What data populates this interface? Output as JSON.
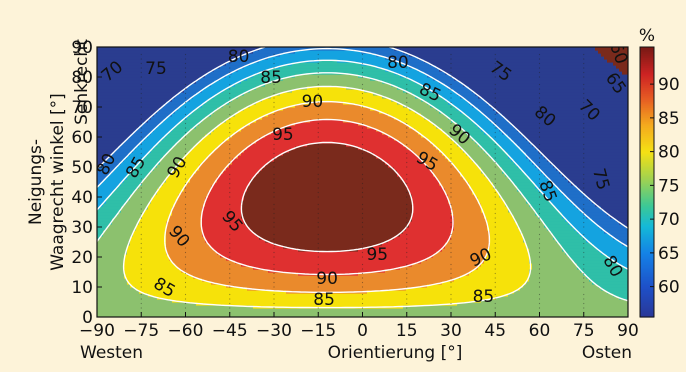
{
  "chart_data": {
    "type": "heatmap",
    "x": {
      "label": "Orientierung [°]",
      "range": [
        -90,
        90
      ],
      "ticks": [
        "−90",
        "−75",
        "−60",
        "−45",
        "−30",
        "−15",
        "0",
        "15",
        "30",
        "45",
        "60",
        "75",
        "90"
      ],
      "tick_values": [
        -90,
        -75,
        -60,
        -45,
        -30,
        -15,
        0,
        15,
        30,
        45,
        60,
        75,
        90
      ],
      "left_end_label": "Westen",
      "right_end_label": "Osten"
    },
    "y": {
      "label_line1": "Neigungs-",
      "label_line2": "Waagrecht winkel [°]",
      "top_label": "Senkrecht",
      "range": [
        0,
        90
      ],
      "ticks": [
        "0",
        "10",
        "20",
        "30",
        "40",
        "50",
        "60",
        "70",
        "80",
        "90"
      ],
      "tick_values": [
        0,
        10,
        20,
        30,
        40,
        50,
        60,
        70,
        80,
        90
      ]
    },
    "colorbar": {
      "unit": "%",
      "range": [
        55.5,
        95.5
      ],
      "ticks": [
        "60",
        "65",
        "70",
        "75",
        "80",
        "85",
        "90"
      ],
      "tick_values": [
        60,
        65,
        70,
        75,
        80,
        85,
        90
      ]
    },
    "value_model": {
      "peak_percent": 100,
      "peak_orientation": -12,
      "peak_tilt": 40
    },
    "contour_levels": [
      60,
      65,
      70,
      75,
      80,
      85,
      90,
      95
    ],
    "fill_bands": [
      {
        "min": 0,
        "max": 60,
        "color": "#2a3d8f"
      },
      {
        "min": 60,
        "max": 65,
        "color": "#1f6fc8"
      },
      {
        "min": 65,
        "max": 70,
        "color": "#14a3e0"
      },
      {
        "min": 70,
        "max": 75,
        "color": "#2fbfa8"
      },
      {
        "min": 75,
        "max": 80,
        "color": "#8cc16e"
      },
      {
        "min": 80,
        "max": 85,
        "color": "#f6e20a"
      },
      {
        "min": 85,
        "max": 90,
        "color": "#ea8a2c"
      },
      {
        "min": 90,
        "max": 95,
        "color": "#df3030"
      },
      {
        "min": 95,
        "max": 200,
        "color": "#7a2a1c"
      }
    ],
    "contour_labels": [
      {
        "text": "70",
        "x": -85,
        "y": 82,
        "rotate": -40
      },
      {
        "text": "75",
        "x": -70,
        "y": 83,
        "rotate": 0
      },
      {
        "text": "80",
        "x": -42,
        "y": 87,
        "rotate": 0
      },
      {
        "text": "80",
        "x": 12,
        "y": 85,
        "rotate": 0
      },
      {
        "text": "85",
        "x": -31,
        "y": 80,
        "rotate": 0
      },
      {
        "text": "85",
        "x": 23,
        "y": 75,
        "rotate": 25
      },
      {
        "text": "75",
        "x": 47,
        "y": 82,
        "rotate": 35
      },
      {
        "text": "80",
        "x": 62,
        "y": 67,
        "rotate": 40
      },
      {
        "text": "70",
        "x": 77,
        "y": 69,
        "rotate": 45
      },
      {
        "text": "65",
        "x": 86,
        "y": 78,
        "rotate": 55
      },
      {
        "text": "60",
        "x": 87,
        "y": 88,
        "rotate": 70
      },
      {
        "text": "75",
        "x": 81,
        "y": 46,
        "rotate": 75
      },
      {
        "text": "90",
        "x": -17,
        "y": 72,
        "rotate": 0
      },
      {
        "text": "95",
        "x": -27,
        "y": 61,
        "rotate": 0
      },
      {
        "text": "90",
        "x": 33,
        "y": 61,
        "rotate": 40
      },
      {
        "text": "95",
        "x": 22,
        "y": 52,
        "rotate": 30
      },
      {
        "text": "80",
        "x": -87,
        "y": 51,
        "rotate": -65
      },
      {
        "text": "85",
        "x": -77,
        "y": 50,
        "rotate": -60
      },
      {
        "text": "90",
        "x": -63,
        "y": 50,
        "rotate": -60
      },
      {
        "text": "85",
        "x": 63,
        "y": 42,
        "rotate": 70
      },
      {
        "text": "95",
        "x": -44,
        "y": 32,
        "rotate": 50
      },
      {
        "text": "90",
        "x": -62,
        "y": 27,
        "rotate": 50
      },
      {
        "text": "95",
        "x": 5,
        "y": 21,
        "rotate": 0
      },
      {
        "text": "90",
        "x": 40,
        "y": 20,
        "rotate": -25
      },
      {
        "text": "80",
        "x": 85,
        "y": 17,
        "rotate": 60
      },
      {
        "text": "90",
        "x": -12,
        "y": 13,
        "rotate": 0
      },
      {
        "text": "85",
        "x": -67,
        "y": 10,
        "rotate": 30
      },
      {
        "text": "85",
        "x": -13,
        "y": 6,
        "rotate": 0
      },
      {
        "text": "85",
        "x": 41,
        "y": 7,
        "rotate": 0
      }
    ]
  }
}
